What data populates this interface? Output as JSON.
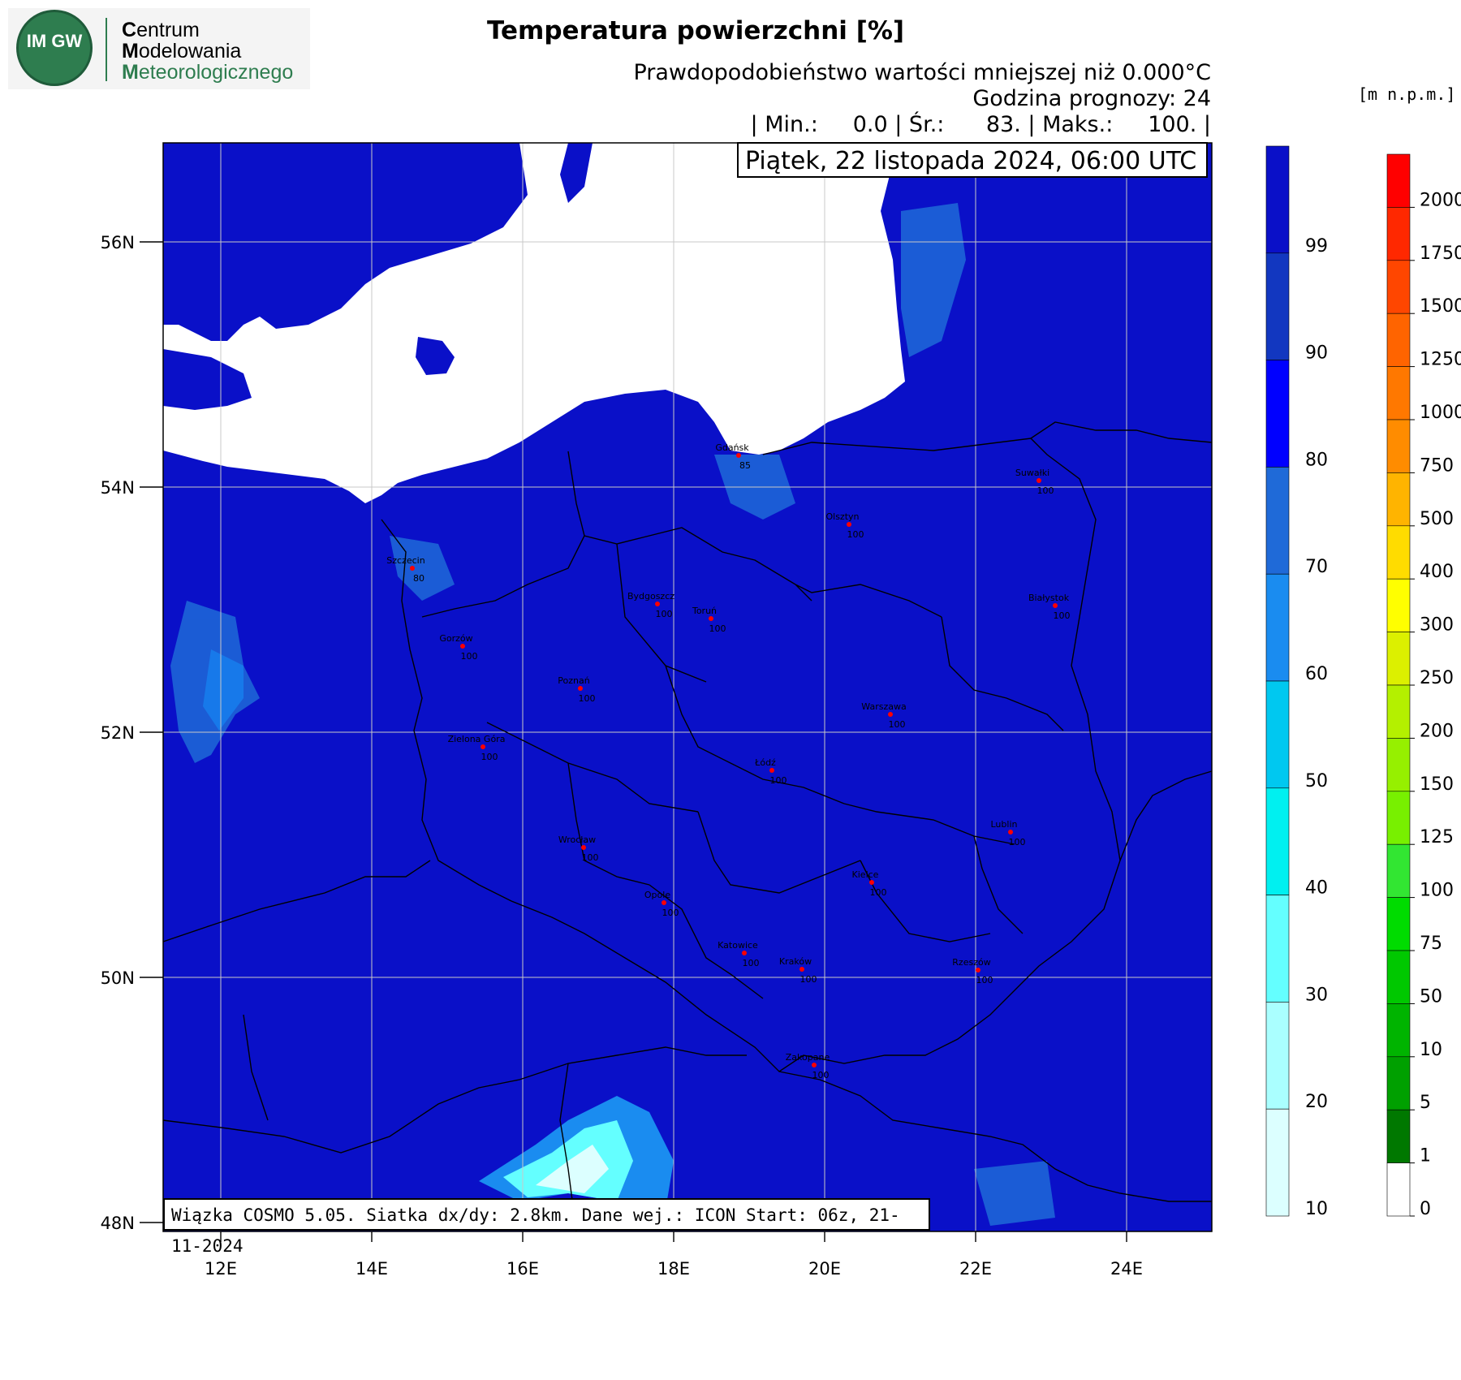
{
  "logo": {
    "circle_text": "IM GW",
    "lines": [
      {
        "initial": "C",
        "rest": "entrum"
      },
      {
        "initial": "M",
        "rest": "odelowania"
      },
      {
        "initial": "M",
        "rest": "eteorologicznego"
      }
    ]
  },
  "header": {
    "title": "Temperatura powierzchni [%]",
    "subtitle": "Prawdopodobieństwo wartości mniejszej niż 0.000°C",
    "forecast_hour": "Godzina prognozy: 24",
    "stats": "| Min.:     0.0 | Śr.:      83. | Maks.:     100. |",
    "date": "Piątek, 22 listopada 2024, 06:00 UTC",
    "unit_label": "[m n.p.m.]"
  },
  "footer": "Wiązka COSMO 5.05. Siatka dx/dy: 2.8km. Dane wej.: ICON Start: 06z, 21-11-2024",
  "map": {
    "colors": {
      "land": "#0a10c8",
      "sea": "#ffffff",
      "border": "#000000",
      "grid": "#c8c8c8",
      "city": "#ff0000",
      "light": "#1f6ad8"
    },
    "lat_ticks": [
      "56N",
      "54N",
      "52N",
      "50N",
      "48N"
    ],
    "lon_ticks": [
      "12E",
      "14E",
      "16E",
      "18E",
      "20E",
      "22E",
      "24E"
    ],
    "cities": [
      {
        "name": "Gdańsk",
        "value": "85"
      },
      {
        "name": "Suwałki",
        "value": "100"
      },
      {
        "name": "Olsztyn",
        "value": "100"
      },
      {
        "name": "Szczecin",
        "value": "80"
      },
      {
        "name": "Bydgoszcz",
        "value": "100"
      },
      {
        "name": "Toruń",
        "value": "100"
      },
      {
        "name": "Białystok",
        "value": "100"
      },
      {
        "name": "Gorzów",
        "value": "100"
      },
      {
        "name": "Poznań",
        "value": "100"
      },
      {
        "name": "Warszawa",
        "value": "100"
      },
      {
        "name": "Zielona Góra",
        "value": "100"
      },
      {
        "name": "Łódź",
        "value": "100"
      },
      {
        "name": "Lublin",
        "value": "100"
      },
      {
        "name": "Wrocław",
        "value": "100"
      },
      {
        "name": "Kielce",
        "value": "100"
      },
      {
        "name": "Opole",
        "value": "100"
      },
      {
        "name": "Katowice",
        "value": "100"
      },
      {
        "name": "Kraków",
        "value": "100"
      },
      {
        "name": "Rzeszów",
        "value": "100"
      },
      {
        "name": "Zakopane",
        "value": "100"
      }
    ]
  },
  "colorbar_probability": {
    "ticks": [
      "99",
      "90",
      "80",
      "70",
      "60",
      "50",
      "40",
      "30",
      "20",
      "10"
    ],
    "colors": [
      "#0a10c8",
      "#1237c0",
      "#0000ff",
      "#1f6ad8",
      "#1a8cf0",
      "#00c8f0",
      "#00f0f0",
      "#64ffff",
      "#aaffff",
      "#dcffff"
    ]
  },
  "colorbar_elevation": {
    "ticks": [
      "2000",
      "1750",
      "1500",
      "1250",
      "1000",
      "750",
      "500",
      "400",
      "300",
      "250",
      "200",
      "150",
      "125",
      "100",
      "75",
      "50",
      "10",
      "5",
      "1",
      "0"
    ],
    "colors": [
      "#ff0000",
      "#ff2800",
      "#ff4600",
      "#ff6400",
      "#ff7800",
      "#ff8c00",
      "#ffb400",
      "#ffdc00",
      "#ffff00",
      "#dcf000",
      "#b4f000",
      "#96f000",
      "#78f000",
      "#32e632",
      "#00dc00",
      "#00c800",
      "#00b400",
      "#00a000",
      "#007800",
      "#ffffff"
    ]
  }
}
